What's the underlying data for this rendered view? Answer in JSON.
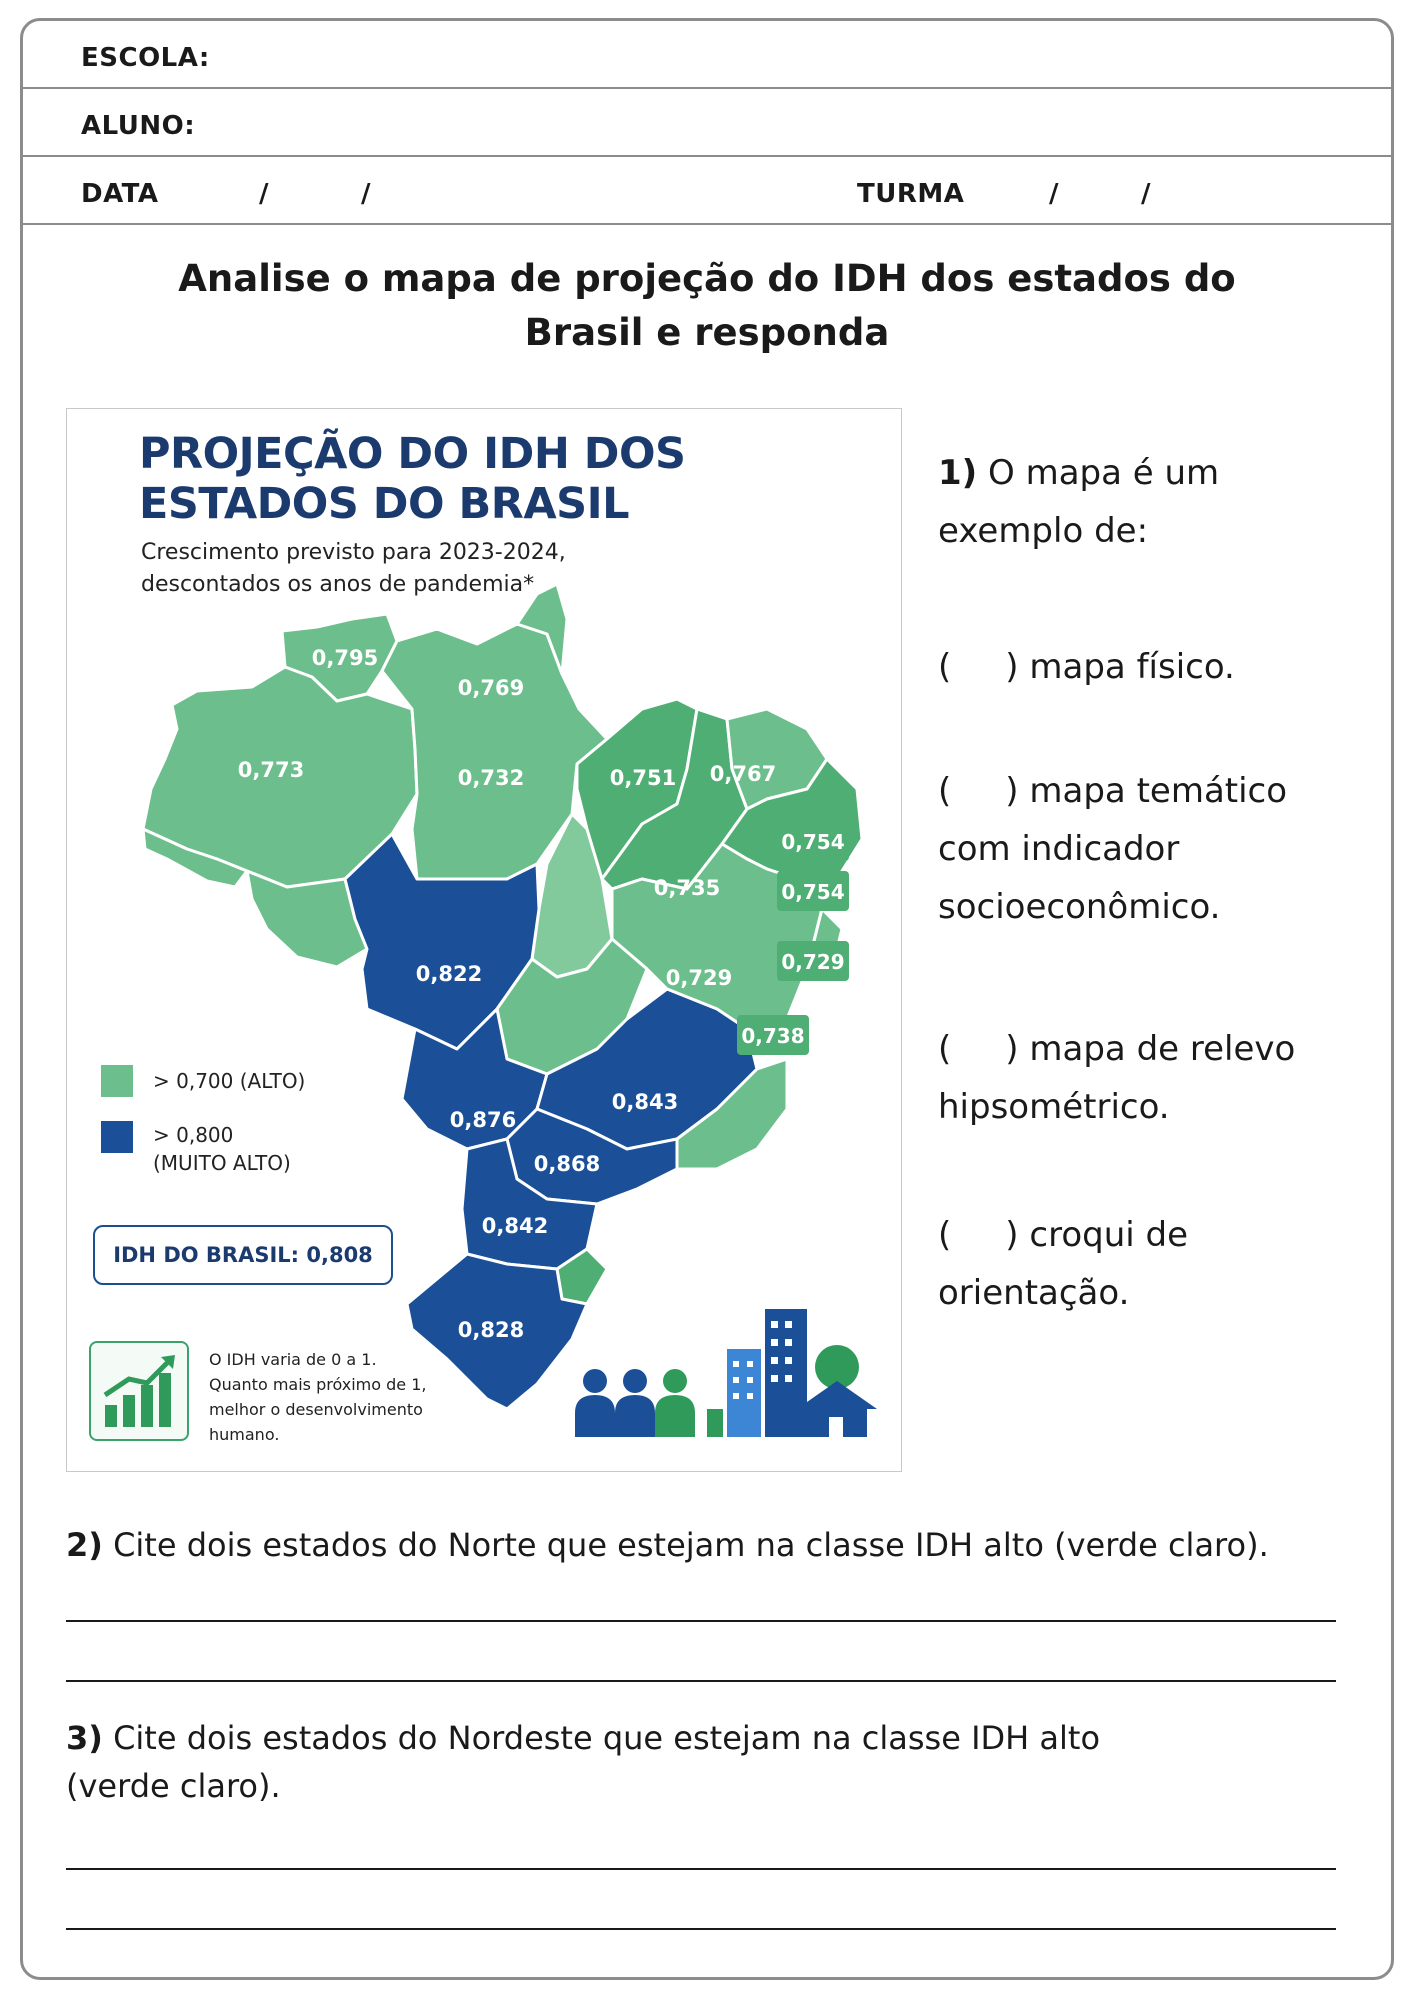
{
  "header": {
    "school_label": "ESCOLA:",
    "student_label": "ALUNO:",
    "date_label": "DATA",
    "class_label": "TURMA",
    "slash": "/"
  },
  "instruction": {
    "line1": "Analise o mapa de projeção do IDH dos estados do",
    "line2": "Brasil e responda"
  },
  "map_card": {
    "title_line1": "PROJEÇÃO DO IDH DOS",
    "title_line2": "ESTADOS DO BRASIL",
    "subtitle_line1": "Crescimento previsto para 2023-2024,",
    "subtitle_line2": "descontados os anos de pandemia*",
    "legend": [
      {
        "label": "> 0,700 (ALTO)",
        "color": "#6cbf8c"
      },
      {
        "label_line1": "> 0,800",
        "label_line2": "(MUITO ALTO)",
        "color": "#1b4f97"
      }
    ],
    "brasil_idh": "IDH DO BRASIL: 0,808",
    "info_line1": "O IDH varia de 0 a 1.",
    "info_line2": "Quanto mais próximo de 1,",
    "info_line3": "melhor o desenvolvimento",
    "info_line4": "humano.",
    "colors": {
      "alto": "#6cbf8c",
      "alto_dark": "#4fae74",
      "muito_alto": "#1b4f97",
      "title": "#1b3a6e"
    },
    "state_values": {
      "rr": "0,795",
      "am": "0,773",
      "pa": "0,769",
      "pa_south": "0,732",
      "ma": "0,751",
      "ce": "0,767",
      "rn": "0,754",
      "pb": "0,754",
      "pi": "0,735",
      "pe": "0,729",
      "ba": "0,729",
      "se_al": "0,738",
      "mt": "0,822",
      "mg": "0,843",
      "ms": "0,876",
      "sp": "0,868",
      "pr": "0,842",
      "rs": "0,828"
    }
  },
  "question1": {
    "number": "1)",
    "text_line1": "O mapa é um",
    "text_line2": "exemplo de:",
    "options": [
      {
        "paren": "(     )",
        "line1": "mapa físico.",
        "line2": ""
      },
      {
        "paren": "(     )",
        "line1": "mapa temático",
        "line2": "com indicador",
        "line3": "socioeconômico."
      },
      {
        "paren": "(     )",
        "line1": "mapa de relevo",
        "line2": "hipsométrico."
      },
      {
        "paren": "(     )",
        "line1": "croqui de",
        "line2": "orientação."
      }
    ]
  },
  "question2": {
    "number": "2)",
    "text": "Cite dois estados do Norte que estejam na classe IDH alto (verde claro)."
  },
  "question3": {
    "number": "3)",
    "text_line1": "Cite dois estados do Nordeste que estejam na classe IDH alto",
    "text_line2": "(verde claro)."
  }
}
